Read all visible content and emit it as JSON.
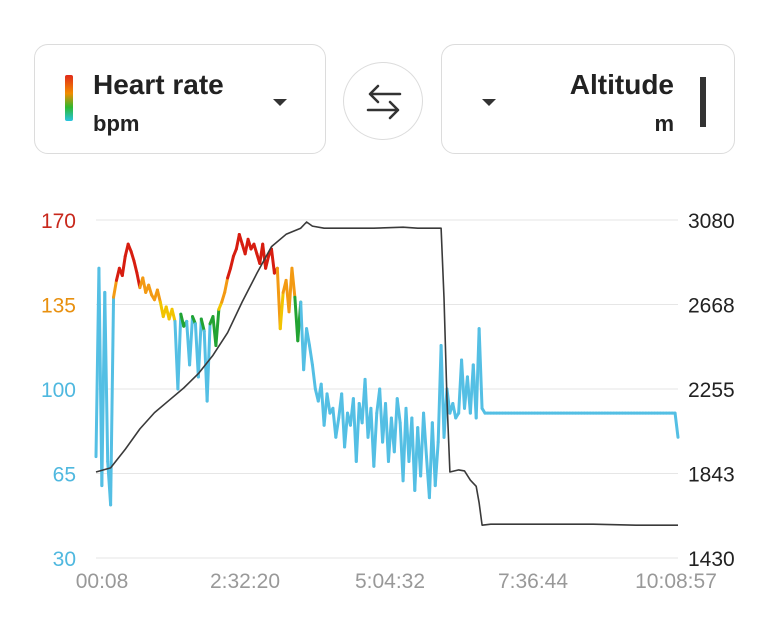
{
  "left_selector": {
    "title": "Heart rate",
    "unit": "bpm"
  },
  "right_selector": {
    "title": "Altitude",
    "unit": "m"
  },
  "colors": {
    "zone_red": "#d71d10",
    "zone_orange": "#f39a13",
    "zone_yellow": "#f2c400",
    "zone_green": "#22a332",
    "zone_blue": "#54bfe4",
    "altitude_line": "#3a3a3a",
    "grid": "#e6e6e6"
  },
  "chart_data": {
    "type": "line",
    "x_ticks": [
      "00:08",
      "2:32:20",
      "5:04:32",
      "7:36:44",
      "10:08:57"
    ],
    "left_axis": {
      "unit": "bpm",
      "ticks": [
        {
          "label": "170",
          "value": 170,
          "color": "#c8281c"
        },
        {
          "label": "135",
          "value": 135,
          "color": "#e8900f"
        },
        {
          "label": "100",
          "value": 100,
          "color": "#4fb8df"
        },
        {
          "label": "65",
          "value": 65,
          "color": "#4fb8df"
        },
        {
          "label": "30",
          "value": 30,
          "color": "#4fb8df"
        }
      ],
      "ylim": [
        30,
        170
      ]
    },
    "right_axis": {
      "unit": "m",
      "ticks": [
        "3080",
        "2668",
        "2255",
        "1843",
        "1430"
      ],
      "ylim": [
        1430,
        3080
      ]
    },
    "series": [
      {
        "name": "Heart rate",
        "axis": "left",
        "colored_by_zone": true,
        "points": [
          [
            0,
            72
          ],
          [
            1,
            150
          ],
          [
            2,
            60
          ],
          [
            3,
            140
          ],
          [
            4,
            70
          ],
          [
            5,
            52
          ],
          [
            6,
            138
          ],
          [
            7,
            145
          ],
          [
            8,
            150
          ],
          [
            9,
            147
          ],
          [
            10,
            155
          ],
          [
            11,
            160
          ],
          [
            12,
            157
          ],
          [
            13,
            153
          ],
          [
            14,
            148
          ],
          [
            15,
            142
          ],
          [
            16,
            146
          ],
          [
            17,
            140
          ],
          [
            18,
            143
          ],
          [
            19,
            139
          ],
          [
            20,
            137
          ],
          [
            21,
            141
          ],
          [
            22,
            136
          ],
          [
            23,
            130
          ],
          [
            24,
            134
          ],
          [
            25,
            129
          ],
          [
            26,
            133
          ],
          [
            27,
            128
          ],
          [
            28,
            100
          ],
          [
            29,
            131
          ],
          [
            30,
            126
          ],
          [
            31,
            128
          ],
          [
            32,
            110
          ],
          [
            33,
            130
          ],
          [
            34,
            127
          ],
          [
            35,
            105
          ],
          [
            36,
            129
          ],
          [
            37,
            124
          ],
          [
            38,
            95
          ],
          [
            39,
            127
          ],
          [
            40,
            130
          ],
          [
            41,
            118
          ],
          [
            42,
            133
          ],
          [
            43,
            136
          ],
          [
            44,
            140
          ],
          [
            45,
            146
          ],
          [
            46,
            150
          ],
          [
            47,
            155
          ],
          [
            48,
            158
          ],
          [
            49,
            164
          ],
          [
            50,
            160
          ],
          [
            51,
            156
          ],
          [
            52,
            162
          ],
          [
            53,
            158
          ],
          [
            54,
            160
          ],
          [
            55,
            156
          ],
          [
            56,
            152
          ],
          [
            57,
            160
          ],
          [
            58,
            150
          ],
          [
            59,
            155
          ],
          [
            60,
            158
          ],
          [
            61,
            148
          ],
          [
            62,
            150
          ],
          [
            63,
            125
          ],
          [
            64,
            140
          ],
          [
            65,
            145
          ],
          [
            66,
            132
          ],
          [
            67,
            150
          ],
          [
            68,
            138
          ],
          [
            69,
            120
          ],
          [
            70,
            136
          ],
          [
            71,
            108
          ],
          [
            72,
            125
          ],
          [
            73,
            118
          ],
          [
            74,
            110
          ],
          [
            75,
            100
          ],
          [
            76,
            95
          ],
          [
            77,
            102
          ],
          [
            78,
            85
          ],
          [
            79,
            98
          ],
          [
            80,
            90
          ],
          [
            81,
            92
          ],
          [
            82,
            80
          ],
          [
            83,
            88
          ],
          [
            84,
            98
          ],
          [
            85,
            76
          ],
          [
            86,
            90
          ],
          [
            87,
            85
          ],
          [
            88,
            96
          ],
          [
            89,
            70
          ],
          [
            90,
            94
          ],
          [
            91,
            86
          ],
          [
            92,
            104
          ],
          [
            93,
            80
          ],
          [
            94,
            92
          ],
          [
            95,
            68
          ],
          [
            96,
            90
          ],
          [
            97,
            100
          ],
          [
            98,
            78
          ],
          [
            99,
            94
          ],
          [
            100,
            70
          ],
          [
            101,
            88
          ],
          [
            102,
            74
          ],
          [
            103,
            96
          ],
          [
            104,
            86
          ],
          [
            105,
            62
          ],
          [
            106,
            92
          ],
          [
            107,
            70
          ],
          [
            108,
            88
          ],
          [
            109,
            58
          ],
          [
            110,
            84
          ],
          [
            111,
            64
          ],
          [
            112,
            90
          ],
          [
            113,
            72
          ],
          [
            114,
            55
          ],
          [
            115,
            86
          ],
          [
            116,
            60
          ],
          [
            117,
            78
          ],
          [
            118,
            118
          ],
          [
            119,
            80
          ],
          [
            120,
            100
          ],
          [
            121,
            90
          ],
          [
            122,
            94
          ],
          [
            123,
            88
          ],
          [
            124,
            90
          ],
          [
            125,
            112
          ],
          [
            126,
            92
          ],
          [
            127,
            105
          ],
          [
            128,
            90
          ],
          [
            129,
            110
          ],
          [
            130,
            88
          ],
          [
            131,
            125
          ],
          [
            132,
            92
          ],
          [
            133,
            90
          ],
          [
            134,
            90
          ],
          [
            135,
            90
          ],
          [
            136,
            90
          ],
          [
            137,
            90
          ],
          [
            138,
            90
          ],
          [
            139,
            90
          ],
          [
            140,
            90
          ],
          [
            141,
            90
          ],
          [
            142,
            90
          ],
          [
            143,
            90
          ],
          [
            144,
            90
          ],
          [
            145,
            90
          ],
          [
            146,
            90
          ],
          [
            147,
            90
          ],
          [
            148,
            90
          ],
          [
            149,
            90
          ],
          [
            150,
            90
          ],
          [
            151,
            90
          ],
          [
            152,
            90
          ],
          [
            153,
            90
          ],
          [
            154,
            90
          ],
          [
            155,
            90
          ],
          [
            156,
            90
          ],
          [
            157,
            90
          ],
          [
            158,
            90
          ],
          [
            159,
            90
          ],
          [
            160,
            90
          ],
          [
            161,
            90
          ],
          [
            162,
            90
          ],
          [
            163,
            90
          ],
          [
            164,
            90
          ],
          [
            165,
            90
          ],
          [
            166,
            90
          ],
          [
            167,
            90
          ],
          [
            168,
            90
          ],
          [
            169,
            90
          ],
          [
            170,
            90
          ],
          [
            171,
            90
          ],
          [
            172,
            90
          ],
          [
            173,
            90
          ],
          [
            174,
            90
          ],
          [
            175,
            90
          ],
          [
            176,
            90
          ],
          [
            177,
            90
          ],
          [
            178,
            90
          ],
          [
            179,
            90
          ],
          [
            180,
            90
          ],
          [
            181,
            90
          ],
          [
            182,
            90
          ],
          [
            183,
            90
          ],
          [
            184,
            90
          ],
          [
            185,
            90
          ],
          [
            186,
            90
          ],
          [
            187,
            90
          ],
          [
            188,
            90
          ],
          [
            189,
            90
          ],
          [
            190,
            90
          ],
          [
            191,
            90
          ],
          [
            192,
            90
          ],
          [
            193,
            90
          ],
          [
            194,
            90
          ],
          [
            195,
            90
          ],
          [
            196,
            90
          ],
          [
            197,
            90
          ],
          [
            198,
            90
          ],
          [
            199,
            80
          ]
        ]
      },
      {
        "name": "Altitude",
        "axis": "right",
        "points": [
          [
            0,
            1850
          ],
          [
            5,
            1870
          ],
          [
            10,
            1960
          ],
          [
            15,
            2060
          ],
          [
            20,
            2140
          ],
          [
            25,
            2200
          ],
          [
            30,
            2260
          ],
          [
            35,
            2330
          ],
          [
            40,
            2420
          ],
          [
            45,
            2530
          ],
          [
            50,
            2680
          ],
          [
            55,
            2820
          ],
          [
            60,
            2950
          ],
          [
            65,
            3010
          ],
          [
            70,
            3040
          ],
          [
            72,
            3070
          ],
          [
            74,
            3050
          ],
          [
            78,
            3040
          ],
          [
            85,
            3040
          ],
          [
            95,
            3040
          ],
          [
            105,
            3045
          ],
          [
            110,
            3040
          ],
          [
            115,
            3040
          ],
          [
            118,
            3040
          ],
          [
            119,
            2700
          ],
          [
            120,
            2200
          ],
          [
            121,
            1850
          ],
          [
            124,
            1860
          ],
          [
            126,
            1855
          ],
          [
            128,
            1810
          ],
          [
            130,
            1780
          ],
          [
            131,
            1700
          ],
          [
            132,
            1590
          ],
          [
            135,
            1595
          ],
          [
            150,
            1595
          ],
          [
            170,
            1595
          ],
          [
            185,
            1590
          ],
          [
            199,
            1590
          ]
        ],
        "x_max": 199
      }
    ]
  }
}
